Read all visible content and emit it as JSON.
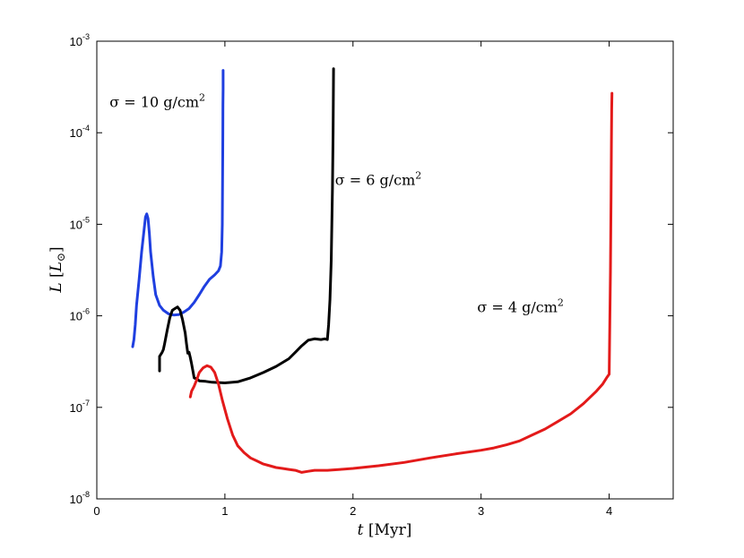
{
  "chart_data": {
    "type": "line",
    "xlabel": {
      "var": "t",
      "unit": " [Myr]"
    },
    "ylabel": {
      "var": "L",
      "unit": "L",
      "sub": "⊙"
    },
    "xlim": [
      0,
      4.5
    ],
    "ylim": [
      1e-08,
      0.001
    ],
    "yscale": "log",
    "grid": false,
    "x_ticks": [
      "0",
      "1",
      "2",
      "3",
      "4"
    ],
    "y_ticks": [
      {
        "base": "10",
        "exp": "-8"
      },
      {
        "base": "10",
        "exp": "-7"
      },
      {
        "base": "10",
        "exp": "-6"
      },
      {
        "base": "10",
        "exp": "-5"
      },
      {
        "base": "10",
        "exp": "-4"
      },
      {
        "base": "10",
        "exp": "-3"
      }
    ],
    "annotations": [
      {
        "text": "σ = 10 g/cm",
        "sup": "2",
        "x": 0.1,
        "y": 0.00019
      },
      {
        "text": "σ = 6 g/cm",
        "sup": "2",
        "x": 1.86,
        "y": 2.7e-05
      },
      {
        "text": "σ = 4 g/cm",
        "sup": "2",
        "x": 2.97,
        "y": 1.1e-06
      }
    ],
    "series": [
      {
        "color": "#1f3fe0",
        "x": [
          0.28,
          0.29,
          0.3,
          0.31,
          0.33,
          0.35,
          0.37,
          0.38,
          0.39,
          0.4,
          0.41,
          0.42,
          0.44,
          0.46,
          0.49,
          0.52,
          0.56,
          0.6,
          0.64,
          0.68,
          0.72,
          0.76,
          0.8,
          0.84,
          0.88,
          0.92,
          0.95,
          0.965,
          0.975,
          0.98,
          0.982,
          0.983,
          0.984,
          0.985,
          0.986,
          0.986
        ],
        "y": [
          4.6e-07,
          5.5e-07,
          8e-07,
          1.3e-06,
          2.5e-06,
          5e-06,
          9e-06,
          1.2e-05,
          1.3e-05,
          1.15e-05,
          8e-06,
          5e-06,
          2.7e-06,
          1.7e-06,
          1.3e-06,
          1.15e-06,
          1.05e-06,
          1.02e-06,
          1.03e-06,
          1.1e-06,
          1.2e-06,
          1.4e-06,
          1.7e-06,
          2.1e-06,
          2.5e-06,
          2.8e-06,
          3.1e-06,
          3.5e-06,
          5e-06,
          1e-05,
          3e-05,
          6e-05,
          0.0001,
          0.0002,
          0.0003,
          0.00048
        ]
      },
      {
        "color": "#000000",
        "x": [
          0.49,
          0.49,
          0.51,
          0.52,
          0.53,
          0.55,
          0.57,
          0.59,
          0.61,
          0.63,
          0.65,
          0.67,
          0.69,
          0.7,
          0.71,
          0.72,
          0.73,
          0.74,
          0.75,
          0.76,
          0.78,
          0.8,
          0.85,
          0.9,
          1.0,
          1.1,
          1.2,
          1.3,
          1.4,
          1.5,
          1.55,
          1.6,
          1.65,
          1.7,
          1.75,
          1.78,
          1.8,
          1.81,
          1.82,
          1.83,
          1.835,
          1.84,
          1.845,
          1.848
        ],
        "y": [
          2.5e-07,
          3.6e-07,
          4e-07,
          4.3e-07,
          5e-07,
          7e-07,
          9.5e-07,
          1.15e-06,
          1.2e-06,
          1.25e-06,
          1.15e-06,
          9e-07,
          6.5e-07,
          5e-07,
          3.9e-07,
          4e-07,
          3.5e-07,
          3e-07,
          2.5e-07,
          2.1e-07,
          2.05e-07,
          1.95e-07,
          1.92e-07,
          1.88e-07,
          1.85e-07,
          1.9e-07,
          2.1e-07,
          2.4e-07,
          2.8e-07,
          3.4e-07,
          4e-07,
          4.7e-07,
          5.4e-07,
          5.6e-07,
          5.5e-07,
          5.6e-07,
          5.5e-07,
          8e-07,
          1.5e-06,
          4e-06,
          1e-05,
          2.5e-05,
          0.0001,
          0.0005
        ]
      },
      {
        "color": "#e31a1a",
        "x": [
          0.73,
          0.74,
          0.76,
          0.78,
          0.8,
          0.83,
          0.86,
          0.89,
          0.92,
          0.95,
          0.98,
          1.02,
          1.06,
          1.1,
          1.15,
          1.2,
          1.25,
          1.3,
          1.35,
          1.4,
          1.45,
          1.5,
          1.55,
          1.6,
          1.65,
          1.7,
          1.8,
          1.9,
          2.0,
          2.2,
          2.4,
          2.6,
          2.8,
          3.0,
          3.1,
          3.2,
          3.3,
          3.4,
          3.5,
          3.6,
          3.7,
          3.8,
          3.9,
          3.95,
          3.98,
          4.0,
          4.01,
          4.015,
          4.018,
          4.02,
          4.022
        ],
        "y": [
          1.3e-07,
          1.5e-07,
          1.7e-07,
          2e-07,
          2.4e-07,
          2.7e-07,
          2.85e-07,
          2.75e-07,
          2.4e-07,
          1.8e-07,
          1.2e-07,
          7.5e-08,
          5e-08,
          3.8e-08,
          3.2e-08,
          2.8e-08,
          2.6e-08,
          2.4e-08,
          2.3e-08,
          2.2e-08,
          2.15e-08,
          2.1e-08,
          2.05e-08,
          1.95e-08,
          2e-08,
          2.05e-08,
          2.05e-08,
          2.1e-08,
          2.15e-08,
          2.3e-08,
          2.5e-08,
          2.8e-08,
          3.1e-08,
          3.4e-08,
          3.6e-08,
          3.9e-08,
          4.3e-08,
          5e-08,
          5.8e-08,
          7e-08,
          8.5e-08,
          1.1e-07,
          1.5e-07,
          1.8e-07,
          2.1e-07,
          2.3e-07,
          3e-06,
          2e-05,
          8e-05,
          0.00018,
          0.00027
        ]
      }
    ]
  }
}
